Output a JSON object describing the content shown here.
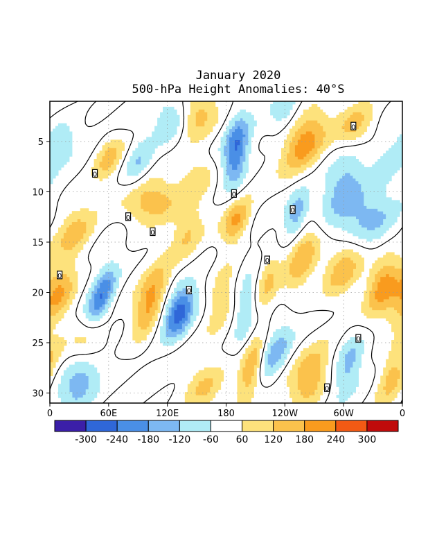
{
  "chart_data": {
    "type": "heatmap",
    "title": "January 2020",
    "subtitle": "500-hPa Height Anomalies: 40°S",
    "xlabel": "",
    "ylabel": "",
    "x_ticks": [
      "0",
      "60E",
      "120E",
      "180",
      "120W",
      "60W",
      "0"
    ],
    "x_tick_values": [
      0,
      60,
      120,
      180,
      240,
      300,
      360
    ],
    "y_ticks": [
      "5",
      "10",
      "15",
      "20",
      "25",
      "30"
    ],
    "y_tick_values": [
      5,
      10,
      15,
      20,
      25,
      30
    ],
    "xlim": [
      0,
      360
    ],
    "ylim": [
      31,
      1
    ],
    "grid": true,
    "contour_line_label": "0",
    "colorbar": {
      "levels": [
        "-300",
        "-240",
        "-180",
        "-120",
        "-60",
        "60",
        "120",
        "180",
        "240",
        "300"
      ],
      "colors": [
        "#3b1fa8",
        "#2f67d8",
        "#4a8fe6",
        "#7db8f2",
        "#b0ecf6",
        "#ffffff",
        "#fde27c",
        "#fbc24c",
        "#f99b1e",
        "#f25a14",
        "#c00b0b"
      ]
    },
    "features": [
      {
        "lon": 52,
        "day": 20.5,
        "value": -250,
        "sx": 9,
        "sy": 2.2,
        "slope": -3.2
      },
      {
        "lon": 132,
        "day": 22.0,
        "value": -280,
        "sx": 10,
        "sy": 1.8,
        "slope": -3.0
      },
      {
        "lon": 190,
        "day": 6.0,
        "value": -240,
        "sx": 9,
        "sy": 2.6,
        "slope": -1.2
      },
      {
        "lon": 252,
        "day": 12.0,
        "value": -160,
        "sx": 8,
        "sy": 1.6,
        "slope": -2.5
      },
      {
        "lon": 320,
        "day": 12.5,
        "value": -170,
        "sx": 24,
        "sy": 2.2,
        "slope": -3.0
      },
      {
        "lon": 300,
        "day": 9.0,
        "value": -120,
        "sx": 14,
        "sy": 2.2,
        "slope": -3.0
      },
      {
        "lon": 90,
        "day": 7.0,
        "value": -130,
        "sx": 10,
        "sy": 1.8,
        "slope": -3.0
      },
      {
        "lon": 125,
        "day": 3.0,
        "value": -150,
        "sx": 13,
        "sy": 1.6,
        "slope": -2.5
      },
      {
        "lon": 200,
        "day": 21.5,
        "value": -140,
        "sx": 8,
        "sy": 2.4,
        "slope": -1.5
      },
      {
        "lon": 230,
        "day": 26.0,
        "value": -150,
        "sx": 10,
        "sy": 2.0,
        "slope": -3.0
      },
      {
        "lon": 305,
        "day": 27.0,
        "value": -150,
        "sx": 10,
        "sy": 2.2,
        "slope": -2.5
      },
      {
        "lon": 30,
        "day": 29.0,
        "value": -150,
        "sx": 14,
        "sy": 2.0,
        "slope": -3.0
      },
      {
        "lon": 10,
        "day": 5.0,
        "value": -110,
        "sx": 12,
        "sy": 1.6,
        "slope": -3.0
      },
      {
        "lon": 345,
        "day": 7.5,
        "value": -80,
        "sx": 10,
        "sy": 1.5,
        "slope": -2.5
      },
      {
        "lon": 240,
        "day": 2.0,
        "value": -90,
        "sx": 10,
        "sy": 1.5,
        "slope": -2.5
      },
      {
        "lon": 8,
        "day": 20.0,
        "value": 200,
        "sx": 12,
        "sy": 2.2,
        "slope": -3.0
      },
      {
        "lon": 102,
        "day": 21.0,
        "value": 220,
        "sx": 10,
        "sy": 2.5,
        "slope": -3.0
      },
      {
        "lon": 300,
        "day": 17.5,
        "value": 180,
        "sx": 14,
        "sy": 2.2,
        "slope": -3.0
      },
      {
        "lon": 340,
        "day": 19.0,
        "value": 200,
        "sx": 11,
        "sy": 2.2,
        "slope": -2.5
      },
      {
        "lon": 258,
        "day": 16.5,
        "value": 150,
        "sx": 10,
        "sy": 2.5,
        "slope": -2.5
      },
      {
        "lon": 105,
        "day": 11.0,
        "value": 180,
        "sx": 20,
        "sy": 1.6,
        "slope": -3.0
      },
      {
        "lon": 190,
        "day": 13.0,
        "value": 190,
        "sx": 9,
        "sy": 1.6,
        "slope": -2.5
      },
      {
        "lon": 260,
        "day": 5.0,
        "value": 200,
        "sx": 14,
        "sy": 2.2,
        "slope": -3.0
      },
      {
        "lon": 205,
        "day": 27.5,
        "value": 200,
        "sx": 8,
        "sy": 2.2,
        "slope": -2.5
      },
      {
        "lon": 265,
        "day": 28.5,
        "value": 170,
        "sx": 13,
        "sy": 2.2,
        "slope": -2.5
      },
      {
        "lon": 350,
        "day": 28.0,
        "value": 160,
        "sx": 10,
        "sy": 2.2,
        "slope": -3.0
      },
      {
        "lon": 158,
        "day": 29.5,
        "value": 140,
        "sx": 14,
        "sy": 1.8,
        "slope": -3.0
      },
      {
        "lon": 60,
        "day": 6.5,
        "value": 140,
        "sx": 10,
        "sy": 1.6,
        "slope": -3.0
      },
      {
        "lon": 25,
        "day": 14.0,
        "value": 130,
        "sx": 14,
        "sy": 1.8,
        "slope": -2.5
      },
      {
        "lon": 150,
        "day": 2.5,
        "value": 150,
        "sx": 14,
        "sy": 1.6,
        "slope": -2.5
      },
      {
        "lon": 312,
        "day": 3.5,
        "value": 140,
        "sx": 13,
        "sy": 1.5,
        "slope": -2.5
      },
      {
        "lon": 175,
        "day": 20.0,
        "value": 110,
        "sx": 9,
        "sy": 2.5,
        "slope": -2.0
      },
      {
        "lon": 222,
        "day": 19.0,
        "value": 110,
        "sx": 8,
        "sy": 2.2,
        "slope": -2.0
      },
      {
        "lon": 140,
        "day": 14.0,
        "value": 110,
        "sx": 10,
        "sy": 1.8,
        "slope": -2.5
      },
      {
        "lon": 150,
        "day": 8.5,
        "value": 110,
        "sx": 12,
        "sy": 1.6,
        "slope": -2.5
      },
      {
        "lon": 40,
        "day": 25.0,
        "value": 110,
        "sx": 12,
        "sy": 1.6,
        "slope": -2.5
      }
    ]
  }
}
